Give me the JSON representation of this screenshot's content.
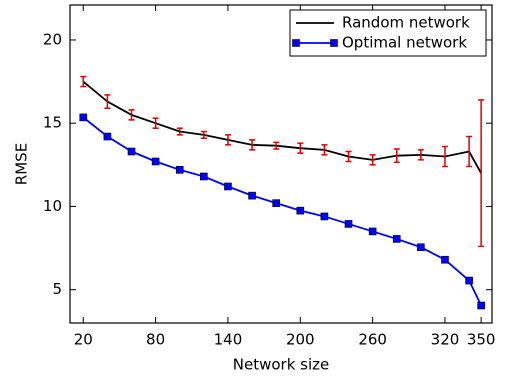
{
  "chart_data": {
    "type": "line",
    "x_label": "Network size",
    "y_label": "RMSE",
    "x": [
      20,
      40,
      60,
      80,
      100,
      120,
      140,
      160,
      180,
      200,
      220,
      240,
      260,
      280,
      300,
      320,
      340,
      350
    ],
    "series": [
      {
        "name": "Random network",
        "color": "#000000",
        "error_color": "#dd0000",
        "values": [
          17.5,
          16.3,
          15.5,
          15.0,
          14.5,
          14.3,
          14.0,
          13.7,
          13.65,
          13.5,
          13.4,
          13.0,
          12.8,
          13.05,
          13.1,
          13.0,
          13.3,
          12.0
        ],
        "errors": [
          0.3,
          0.4,
          0.3,
          0.3,
          0.2,
          0.2,
          0.3,
          0.3,
          0.2,
          0.3,
          0.3,
          0.3,
          0.3,
          0.4,
          0.3,
          0.6,
          0.9,
          4.4
        ]
      },
      {
        "name": "Optimal network",
        "color": "#0000ff",
        "marker": "square",
        "values": [
          15.35,
          14.2,
          13.3,
          12.7,
          12.2,
          11.8,
          11.2,
          10.65,
          10.2,
          9.75,
          9.4,
          8.95,
          8.5,
          8.05,
          7.55,
          6.8,
          5.55,
          4.05
        ]
      }
    ],
    "xlim": [
      9,
      359
    ],
    "ylim": [
      3,
      22.1
    ],
    "xticks": [
      20,
      80,
      140,
      200,
      260,
      320,
      350
    ],
    "yticks": [
      5,
      10,
      15,
      20
    ],
    "legend": "upper right"
  }
}
